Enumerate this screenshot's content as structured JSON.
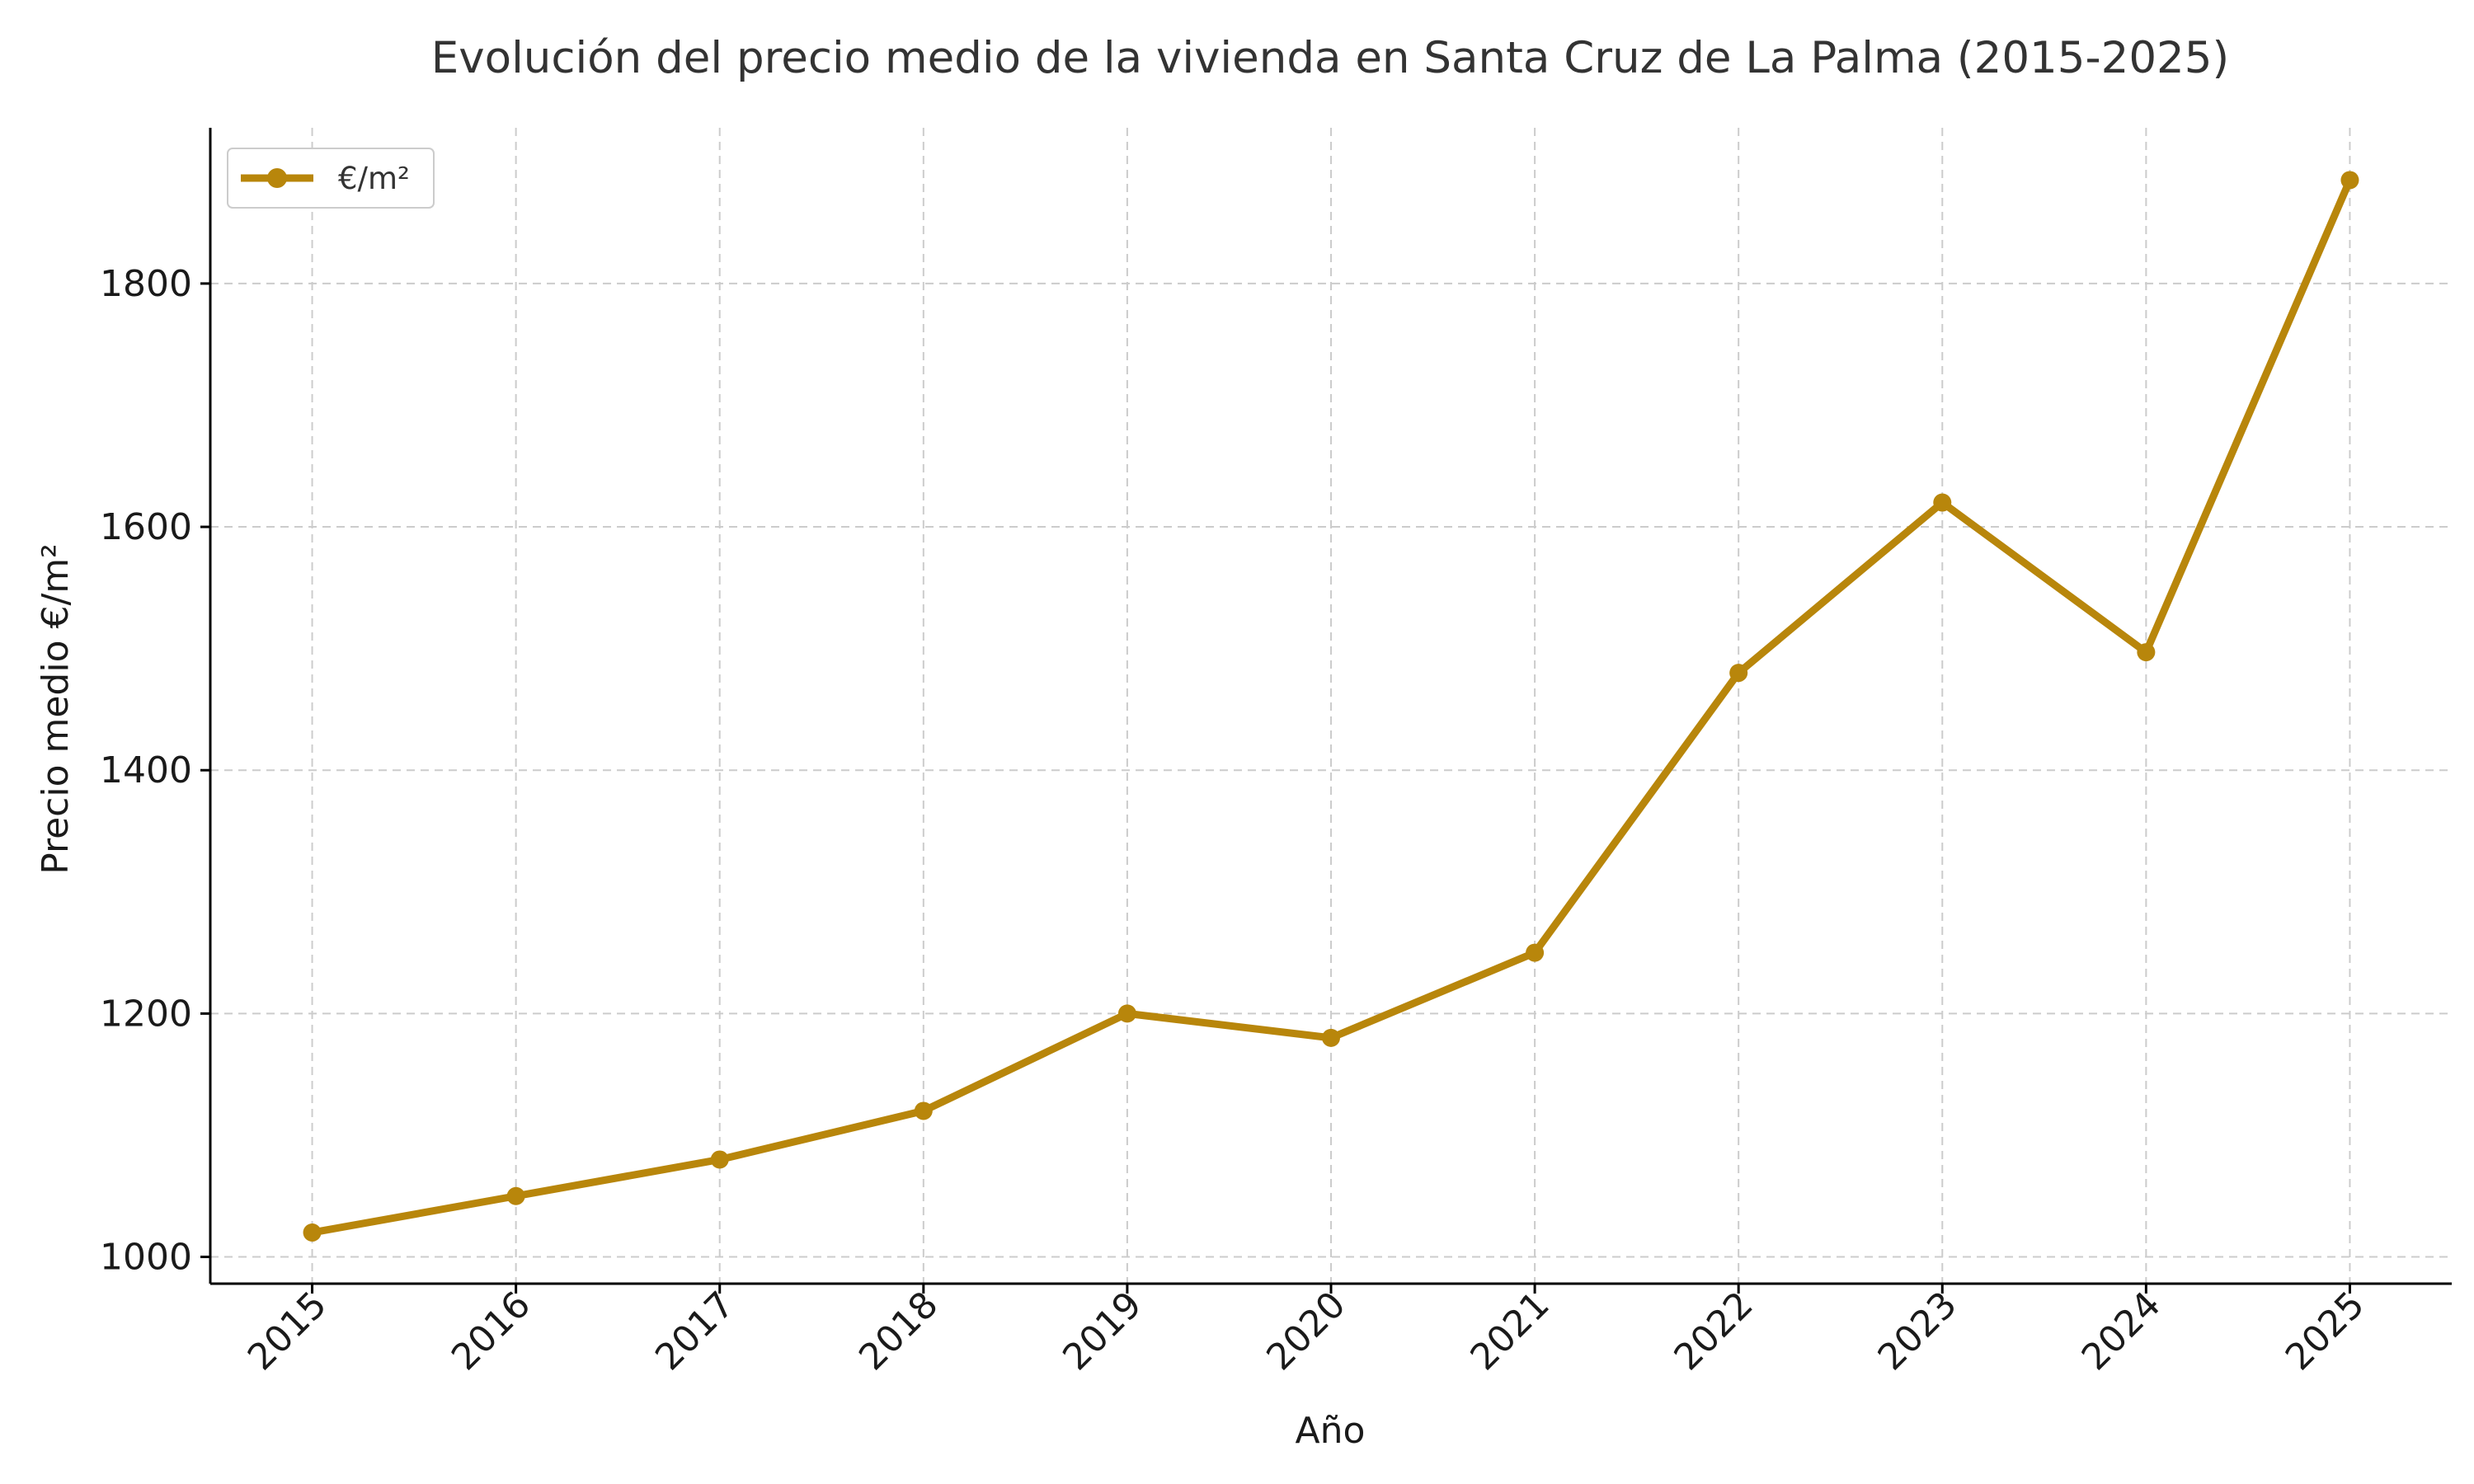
{
  "chart_data": {
    "type": "line",
    "title": "Evolución del precio medio de la vivienda en Santa Cruz de La Palma (2015-2025)",
    "xlabel": "Año",
    "ylabel": "Precio medio €/m²",
    "x": [
      2015,
      2016,
      2017,
      2018,
      2019,
      2020,
      2021,
      2022,
      2023,
      2024,
      2025
    ],
    "x_tick_labels": [
      "2015",
      "2016",
      "2017",
      "2018",
      "2019",
      "2020",
      "2021",
      "2022",
      "2023",
      "2024",
      "2025"
    ],
    "y_ticks": [
      1000,
      1200,
      1400,
      1600,
      1800
    ],
    "y_tick_labels": [
      "1000",
      "1200",
      "1400",
      "1600",
      "1800"
    ],
    "xlim": [
      2014.5,
      2025.5
    ],
    "ylim": [
      978,
      1928
    ],
    "grid": true,
    "legend_position": "top-left",
    "series": [
      {
        "name": "€/m²",
        "color": "#B8860B",
        "marker": "circle",
        "values": [
          1020,
          1050,
          1080,
          1120,
          1200,
          1180,
          1250,
          1480,
          1620,
          1497,
          1885
        ]
      }
    ]
  }
}
